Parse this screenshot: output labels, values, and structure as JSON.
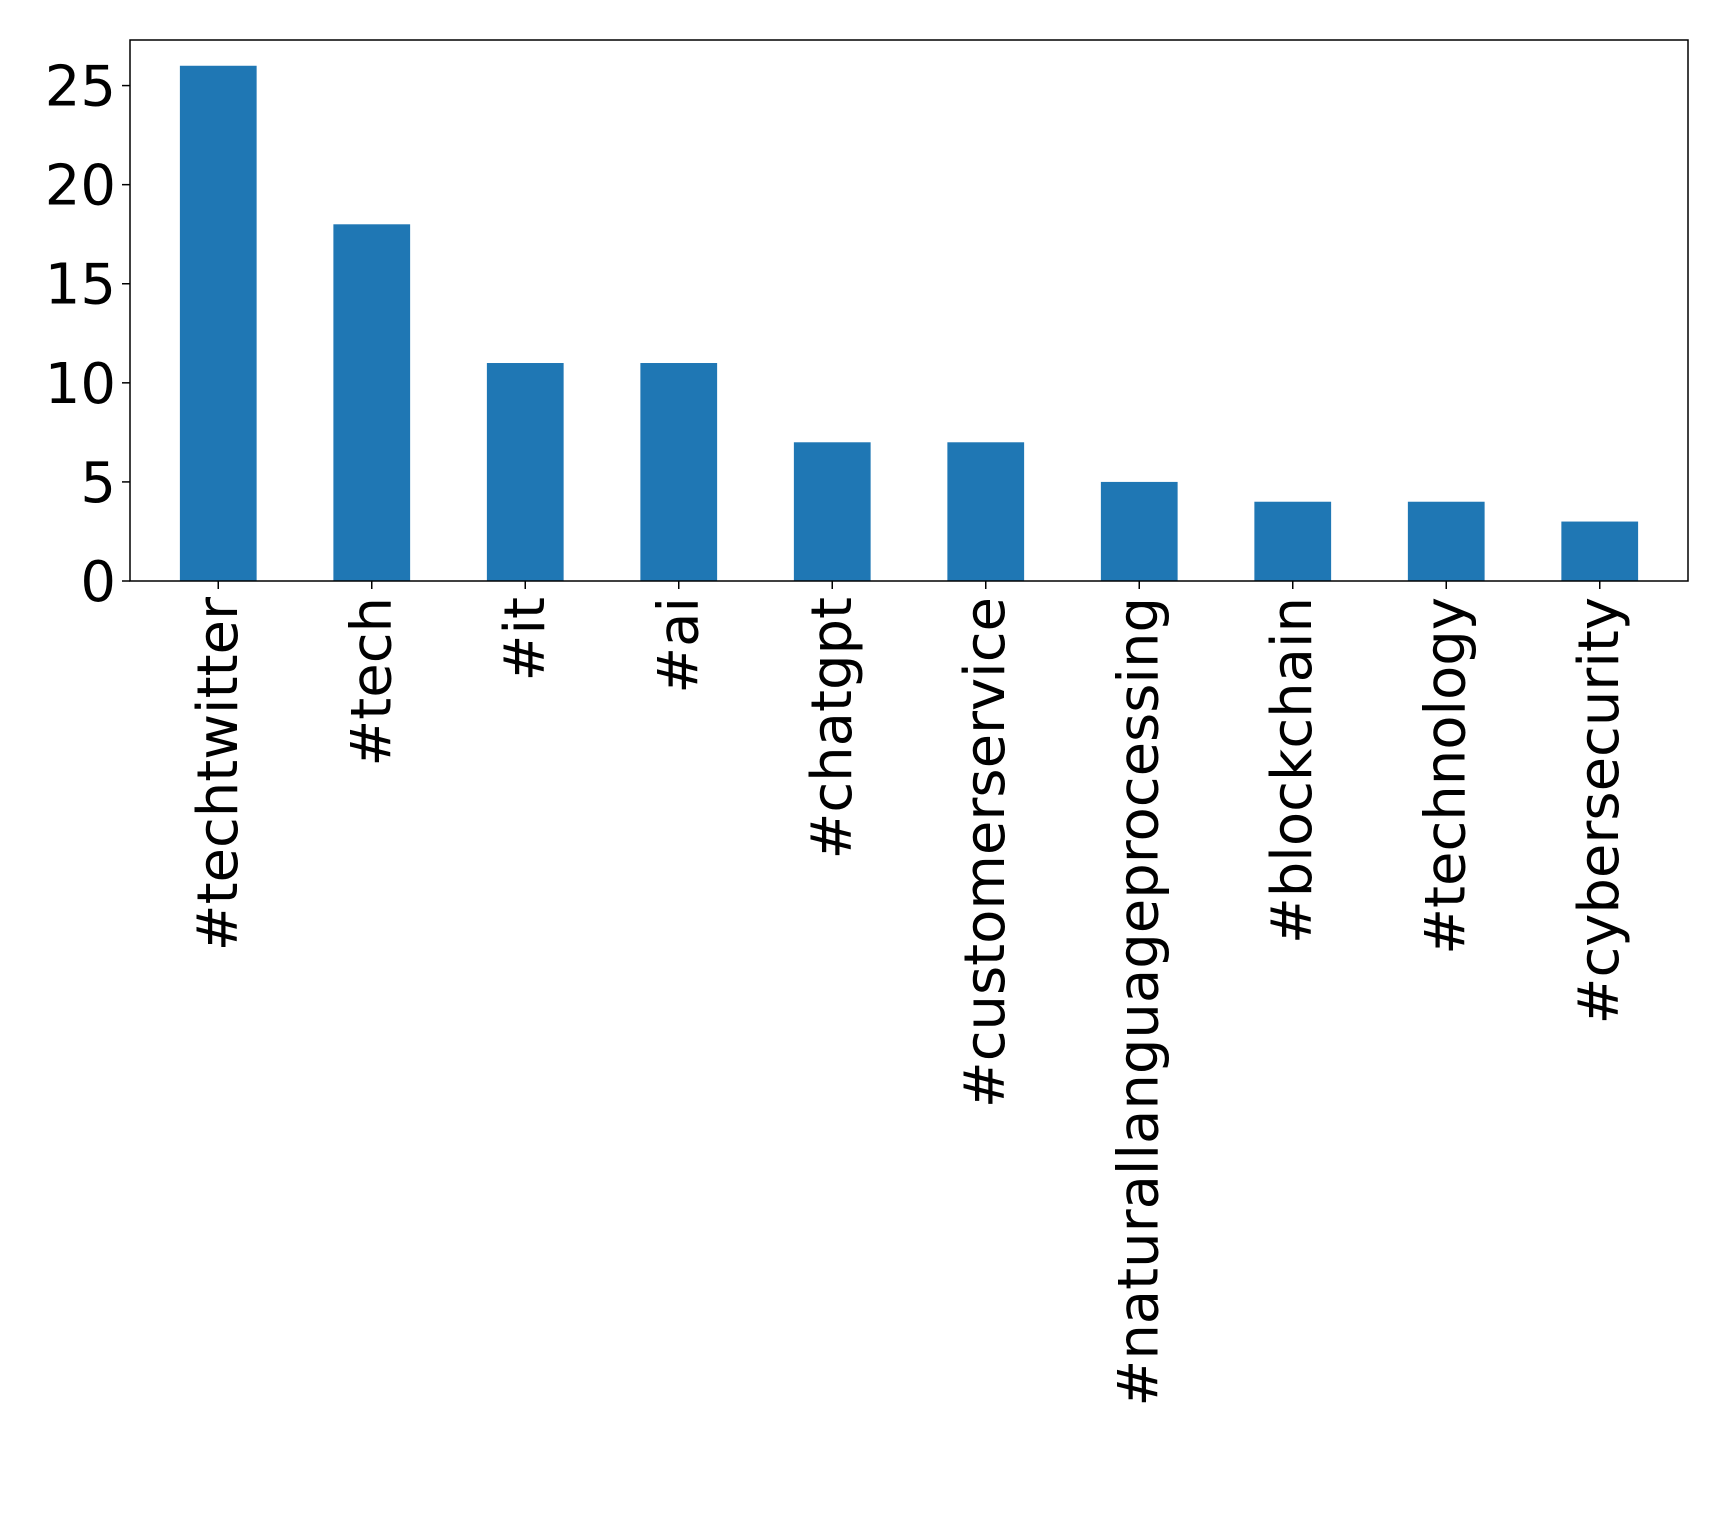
{
  "chart_data": {
    "type": "bar",
    "categories": [
      "#techtwitter",
      "#tech",
      "#it",
      "#ai",
      "#chatgpt",
      "#customerservice",
      "#naturallanguageprocessing",
      "#blockchain",
      "#technology",
      "#cybersecurity"
    ],
    "values": [
      26,
      18,
      11,
      11,
      7,
      7,
      5,
      4,
      4,
      3
    ],
    "title": "",
    "xlabel": "",
    "ylabel": "",
    "ylim": [
      0,
      27.3
    ],
    "yticks": [
      0,
      5,
      10,
      15,
      20,
      25
    ],
    "bar_color": "#1f77b4",
    "grid": false,
    "legend": "none"
  }
}
